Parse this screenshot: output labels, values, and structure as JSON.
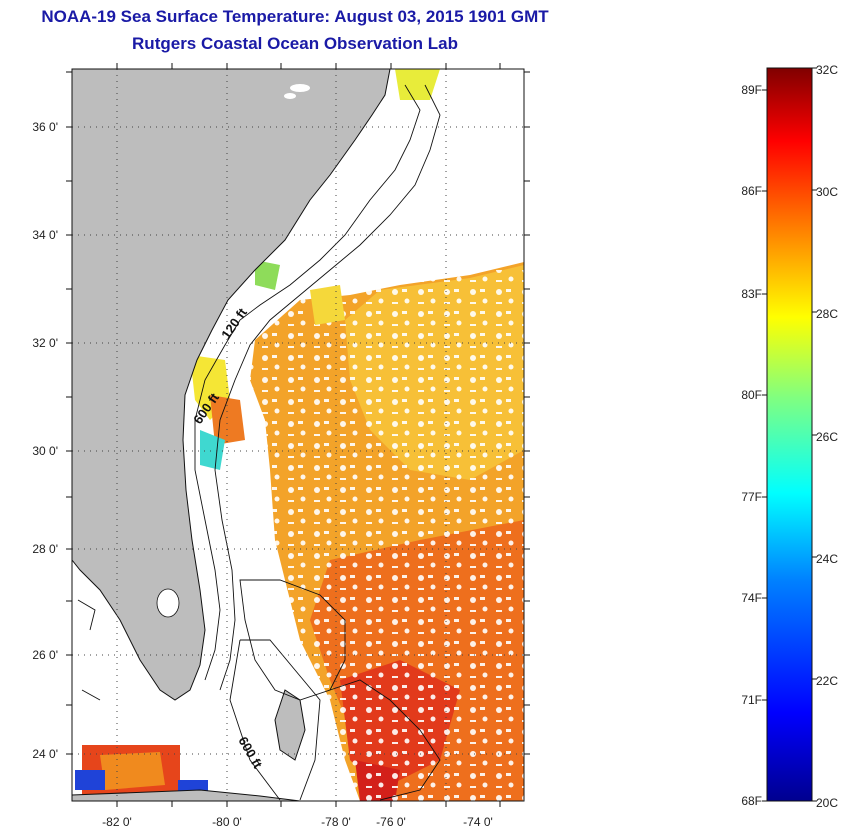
{
  "header": {
    "title": "NOAA-19 Sea Surface Temperature:  August 03, 2015 1901 GMT",
    "subtitle": "Rutgers Coastal Ocean Observation Lab"
  },
  "map": {
    "lon_range": [
      -83,
      -73
    ],
    "lat_range": [
      23,
      37
    ],
    "lon_ticks": [
      "-82 0'",
      "-80 0'",
      "-78 0'",
      "-76 0'",
      "-74 0'"
    ],
    "lat_ticks": [
      "36 0'",
      "34 0'",
      "32 0'",
      "30 0'",
      "28 0'",
      "26 0'",
      "24 0'"
    ],
    "grid": "dotted",
    "land_color": "#bdbdbd",
    "contour_labels": [
      "120 ft",
      "600 ft",
      "600 ft"
    ]
  },
  "colorbar": {
    "range_c": [
      20,
      32
    ],
    "f_labels": [
      "89F",
      "86F",
      "83F",
      "80F",
      "77F",
      "74F",
      "71F",
      "68F"
    ],
    "c_labels": [
      "32C",
      "30C",
      "28C",
      "26C",
      "24C",
      "22C",
      "20C"
    ],
    "colors": [
      "#00008f",
      "#0000ff",
      "#0080ff",
      "#00ffff",
      "#80ff80",
      "#ffff00",
      "#ff8000",
      "#ff0000",
      "#800000"
    ]
  }
}
